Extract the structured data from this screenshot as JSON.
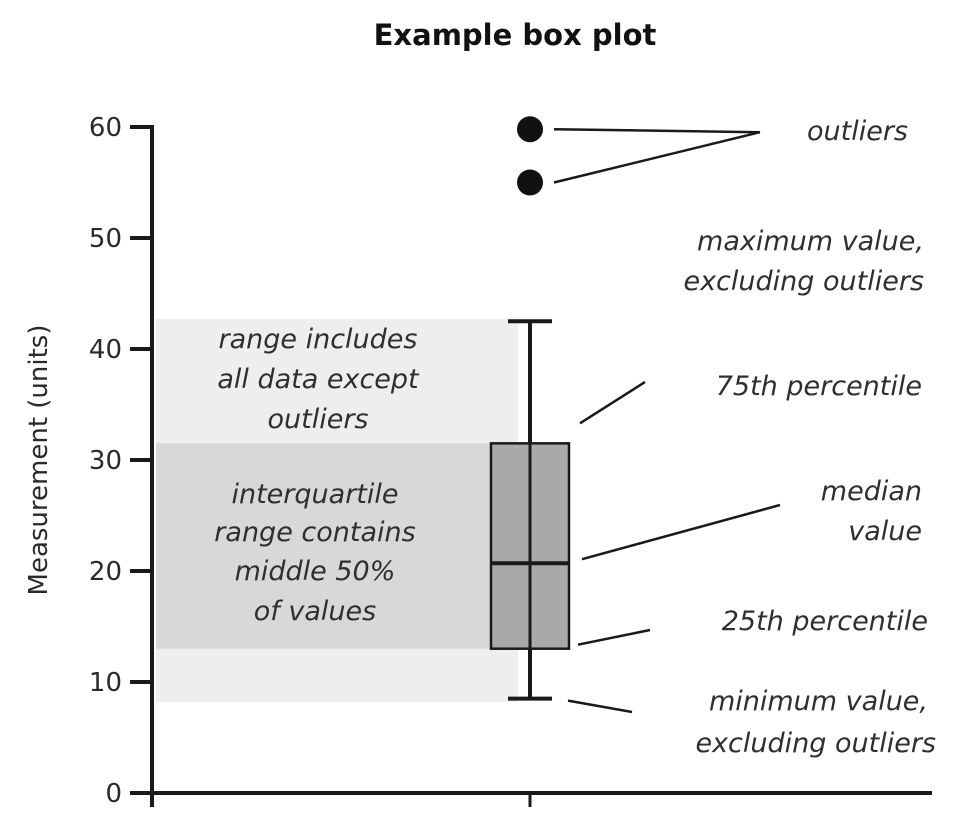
{
  "chart_data": {
    "type": "box",
    "title": "Example box plot",
    "ylabel": "Measurement (units)",
    "xlabel": "",
    "ylim": [
      0,
      60
    ],
    "yticks": [
      "0",
      "10",
      "20",
      "30",
      "40",
      "50",
      "60"
    ],
    "box": {
      "min": 8.5,
      "q1": 13,
      "median": 20.7,
      "q3": 31.5,
      "max": 42.5,
      "outliers": [
        55,
        59.8
      ]
    },
    "bands": [
      {
        "name": "full range",
        "low": 8.2,
        "high": 42.7,
        "color": "#eeeeee"
      },
      {
        "name": "interquartile range",
        "low": 13,
        "high": 31.5,
        "color": "#d8d8d8"
      }
    ],
    "colors": {
      "box_fill": "#a9a9a9",
      "outline": "#1a1a1a"
    },
    "annotations": {
      "outliers": "outliers",
      "max_l1": "maximum value,",
      "max_l2": "excluding outliers",
      "p75": "75th percentile",
      "median_l1": "median",
      "median_l2": "value",
      "p25": "25th percentile",
      "min_l1": "minimum value,",
      "min_l2": "excluding outliers",
      "range_l1": "range includes",
      "range_l2": "all data except",
      "range_l3": "outliers",
      "iqr_l1": "interquartile",
      "iqr_l2": "range contains",
      "iqr_l3": "middle 50%",
      "iqr_l4": "of values"
    }
  }
}
